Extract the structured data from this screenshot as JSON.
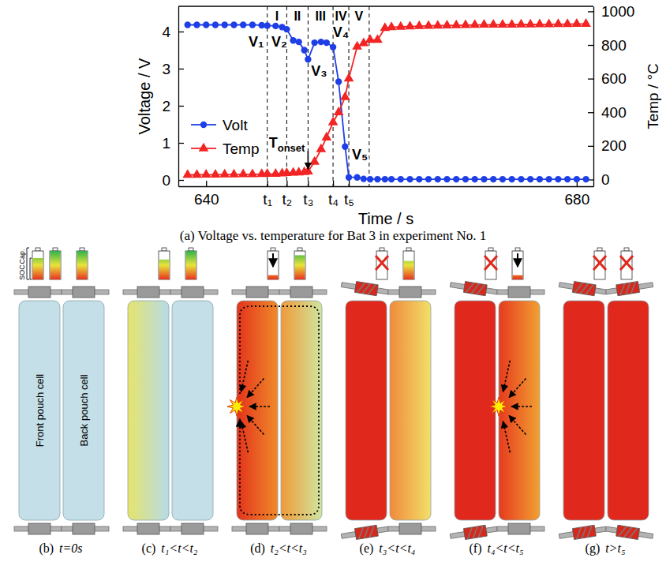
{
  "chart_data": {
    "type": "line",
    "x_label": "Time / s",
    "y_label": "Voltage / V",
    "y2_label": "Temp / °C",
    "caption": "(a)  Voltage vs. temperature for Bat 3 in experiment No. 1",
    "x": [
      638,
      639,
      640,
      641,
      642,
      643,
      644,
      645,
      646,
      646.6,
      647.5,
      648.2,
      648.7,
      649.4,
      650,
      650.6,
      651,
      651.7,
      652.4,
      653,
      653.7,
      654.3,
      655,
      655.4,
      656.3,
      657,
      657.7,
      658.5,
      659.3,
      660,
      661,
      662,
      663,
      664,
      665,
      666,
      667,
      668,
      669,
      670,
      671,
      672,
      673,
      674,
      675,
      676,
      677,
      678,
      679,
      680,
      681
    ],
    "xlim": [
      637,
      681.8
    ],
    "xticks": [
      640,
      {
        "value": 646.6,
        "label": "t₁"
      },
      {
        "value": 648.7,
        "label": "t₂"
      },
      {
        "value": 651,
        "label": "t₃"
      },
      {
        "value": 653.7,
        "label": "t₄"
      },
      {
        "value": 655.4,
        "label": "t₅"
      },
      680
    ],
    "ylim": [
      -0.17,
      4.68
    ],
    "yticks": [
      0,
      1,
      2,
      3,
      4
    ],
    "y2lim": [
      -40,
      1030
    ],
    "y2ticks": [
      0,
      200,
      400,
      600,
      800,
      1000
    ],
    "grid": false,
    "legend": "lower left",
    "series": [
      {
        "name": "Volt",
        "color": "#1f3fe6",
        "marker": "circle",
        "values": [
          4.18,
          4.18,
          4.18,
          4.18,
          4.18,
          4.18,
          4.18,
          4.18,
          4.17,
          4.16,
          4.15,
          4.12,
          4.06,
          3.76,
          3.72,
          3.5,
          3.25,
          3.7,
          3.72,
          3.7,
          3.58,
          2.65,
          0.9,
          0.07,
          0.07,
          0.03,
          0.02,
          0.02,
          0.02,
          0.02,
          0.02,
          0.02,
          0.02,
          0.02,
          0.02,
          0.02,
          0.02,
          0.02,
          0.02,
          0.02,
          0.02,
          0.02,
          0.02,
          0.02,
          0.02,
          0.02,
          0.02,
          0.02,
          0.02,
          0.02,
          0.02
        ]
      },
      {
        "name": "Temp",
        "color": "#f22424",
        "marker": "triangle",
        "axis": "y2",
        "values": [
          28,
          28,
          29,
          29,
          30,
          30,
          31,
          31,
          32,
          33,
          34,
          36,
          38,
          40,
          42,
          44,
          48,
          105,
          180,
          250,
          340,
          400,
          490,
          600,
          790,
          810,
          830,
          830,
          900,
          905,
          908,
          910,
          912,
          914,
          915,
          916,
          917,
          918,
          919,
          920,
          920,
          921,
          921,
          922,
          922,
          923,
          923,
          924,
          924,
          925,
          925
        ]
      }
    ],
    "phases": [
      {
        "label": "I",
        "start": 646.6,
        "end": 648.7
      },
      {
        "label": "II",
        "start": 648.7,
        "end": 651
      },
      {
        "label": "III",
        "start": 651,
        "end": 653.7
      },
      {
        "label": "IV",
        "start": 653.7,
        "end": 655.4
      },
      {
        "label": "V",
        "start": 655.4,
        "end": 657.6
      }
    ],
    "annotations": [
      {
        "text": "V₁",
        "x": 645.4,
        "y": 3.6
      },
      {
        "text": "V₂",
        "x": 647.9,
        "y": 3.6
      },
      {
        "text": "V₃",
        "x": 652.2,
        "y": 2.8
      },
      {
        "text": "V₄",
        "x": 654.55,
        "y": 3.85
      },
      {
        "text": "V₅",
        "x": 656.6,
        "y": 0.55
      },
      {
        "text": "T",
        "subscript": "onset",
        "x": 651,
        "y": 48,
        "axis": "y2",
        "marker": "arrow"
      }
    ]
  },
  "diagram": {
    "cap_label": "Cap.",
    "soc_label": "SOC",
    "legend_icon": {
      "soc": 75
    },
    "cell_names": [
      "Front pouch cell",
      "Back pouch cell"
    ],
    "panels": [
      {
        "letter": "(b)",
        "time": "t=0s",
        "cells": [
          {
            "colors": [
              "#c4dfe7",
              "#c4dfe7"
            ],
            "icon": {
              "soc": 100
            }
          },
          {
            "colors": [
              "#c4dfe7",
              "#c4dfe7"
            ],
            "icon": {
              "soc": 100
            }
          }
        ]
      },
      {
        "letter": "(c)",
        "time": "t₁<t<t₂",
        "cells": [
          {
            "colors": [
              "#e6e46c",
              "#b6dbe8"
            ],
            "icon": {
              "soc": 70
            }
          },
          {
            "colors": [
              "#c4dfe7",
              "#c4dfe7"
            ],
            "icon": {
              "soc": 100
            }
          }
        ]
      },
      {
        "letter": "(d)",
        "time": "t₂<t<t₃",
        "line_style": "dotted",
        "cells": [
          {
            "colors": [
              "#e3321c",
              "#f08a2a"
            ],
            "marker": "explosion",
            "icon": {
              "soc": 15,
              "marker": "arrow"
            }
          },
          {
            "colors": [
              "#f09a38",
              "#cfe6a0"
            ],
            "icon": {
              "soc": 85
            }
          }
        ]
      },
      {
        "letter": "(e)",
        "time": "t₃<t<t₄",
        "cells": [
          {
            "colors": [
              "#e0281c",
              "#e0281c"
            ],
            "icon": {
              "soc": 0,
              "marker": "cross"
            }
          },
          {
            "colors": [
              "#f08a3a",
              "#f2e06a"
            ],
            "icon": {
              "soc": 65
            }
          }
        ]
      },
      {
        "letter": "(f)",
        "time": "t₄<t<t₅",
        "cells": [
          {
            "colors": [
              "#e0281c",
              "#e0281c"
            ],
            "icon": {
              "soc": 0,
              "marker": "cross"
            }
          },
          {
            "colors": [
              "#e63a1e",
              "#f2a032"
            ],
            "marker": "explosion",
            "icon": {
              "soc": 15,
              "marker": "arrow"
            }
          }
        ]
      },
      {
        "letter": "(g)",
        "time": "t>t₅",
        "cells": [
          {
            "colors": [
              "#e0281c",
              "#e0281c"
            ],
            "icon": {
              "soc": 0,
              "marker": "cross"
            }
          },
          {
            "colors": [
              "#e0281c",
              "#e0281c"
            ],
            "icon": {
              "soc": 0,
              "marker": "cross"
            }
          }
        ]
      }
    ]
  }
}
